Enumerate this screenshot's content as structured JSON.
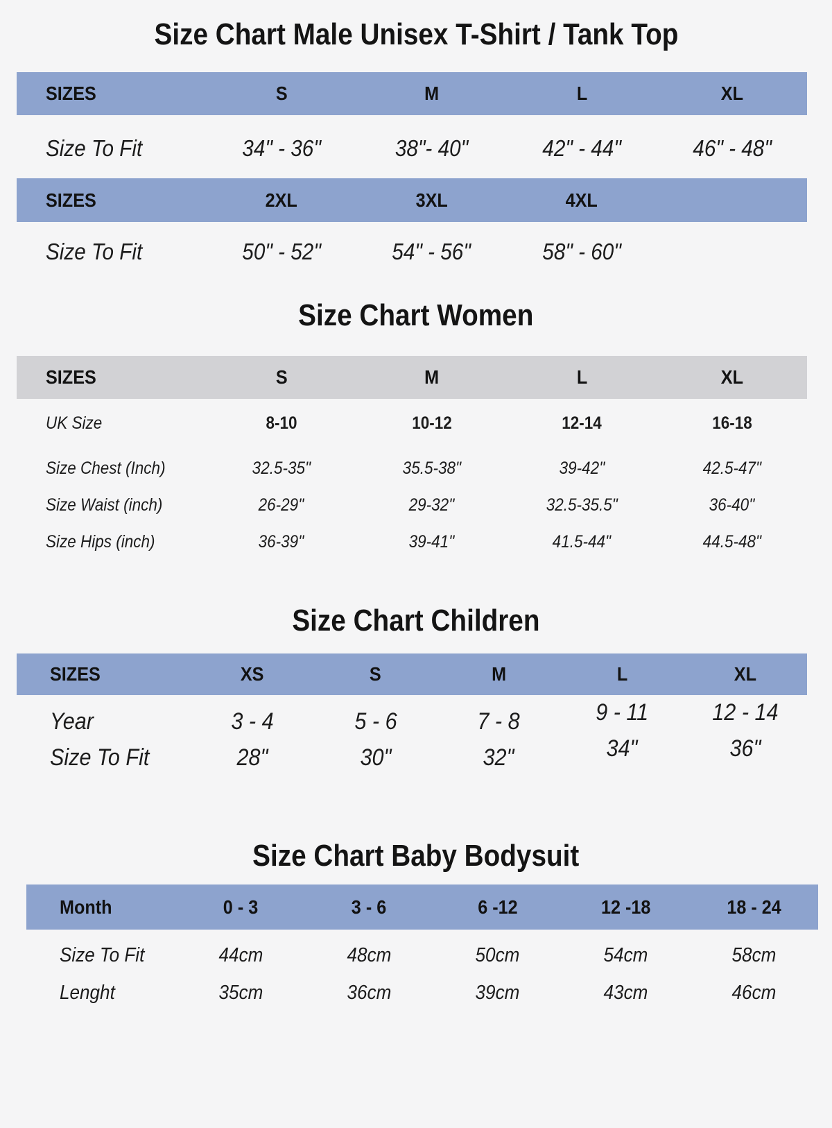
{
  "colors": {
    "band_blue": "#8da3ce",
    "band_gray": "#d2d2d5",
    "page_bg": "#f5f5f6",
    "text_dark": "#141414"
  },
  "male": {
    "title": "Size Chart Male Unisex T-Shirt / Tank Top",
    "header1": [
      "SIZES",
      "S",
      "M",
      "L",
      "XL"
    ],
    "row1_label": "Size To Fit",
    "row1_values": [
      "34\" - 36\"",
      "38\"- 40\"",
      "42\" - 44\"",
      "46\" - 48\""
    ],
    "header2": [
      "SIZES",
      "2XL",
      "3XL",
      "4XL"
    ],
    "row2_label": "Size To Fit",
    "row2_values": [
      "50\" - 52\"",
      "54\" - 56\"",
      "58\" - 60\""
    ]
  },
  "women": {
    "title": "Size Chart Women",
    "header": [
      "SIZES",
      "S",
      "M",
      "L",
      "XL"
    ],
    "row_uk_label": "UK Size",
    "row_uk_values": [
      "8-10",
      "10-12",
      "12-14",
      "16-18"
    ],
    "row_chest_label": "Size Chest (Inch)",
    "row_chest_values": [
      "32.5-35\"",
      "35.5-38\"",
      "39-42\"",
      "42.5-47\""
    ],
    "row_waist_label": "Size Waist (inch)",
    "row_waist_values": [
      "26-29\"",
      "29-32\"",
      "32.5-35.5\"",
      "36-40\""
    ],
    "row_hips_label": "Size Hips (inch)",
    "row_hips_values": [
      "36-39\"",
      "39-41\"",
      "41.5-44\"",
      "44.5-48\""
    ]
  },
  "children": {
    "title": "Size Chart Children",
    "header": [
      "SIZES",
      "XS",
      "S",
      "M",
      "L",
      "XL"
    ],
    "row_year_label": "Year",
    "row_year_values": [
      "3 - 4",
      "5 - 6",
      "7 - 8",
      "9 - 11",
      "12 - 14"
    ],
    "row_fit_label": "Size To Fit",
    "row_fit_values": [
      "28\"",
      "30\"",
      "32\"",
      "34\"",
      "36\""
    ]
  },
  "baby": {
    "title": "Size Chart Baby Bodysuit",
    "header": [
      "Month",
      "0 - 3",
      "3 - 6",
      "6 -12",
      "12 -18",
      "18 - 24"
    ],
    "row_fit_label": "Size To Fit",
    "row_fit_values": [
      "44cm",
      "48cm",
      "50cm",
      "54cm",
      "58cm"
    ],
    "row_length_label": "Lenght",
    "row_length_values": [
      "35cm",
      "36cm",
      "39cm",
      "43cm",
      "46cm"
    ]
  }
}
